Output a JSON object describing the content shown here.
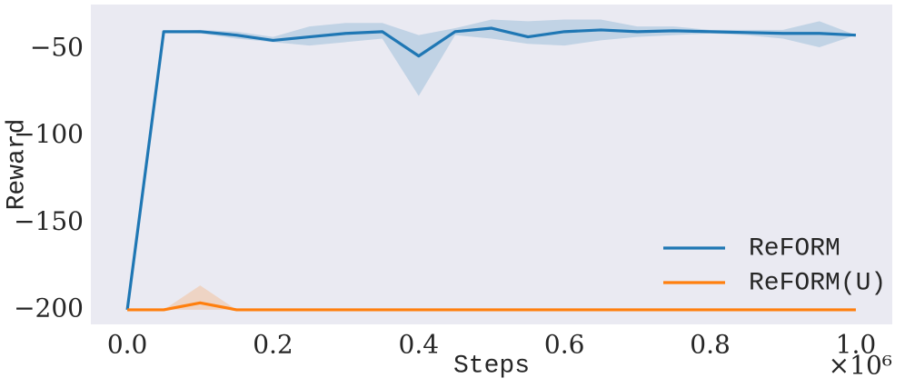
{
  "chart_data": {
    "type": "line",
    "xlabel": "Steps",
    "ylabel": "Reward",
    "x_offset_label": "×10⁶",
    "x": [
      0,
      0.05,
      0.1,
      0.15,
      0.2,
      0.25,
      0.3,
      0.35,
      0.4,
      0.45,
      0.5,
      0.55,
      0.6,
      0.65,
      0.7,
      0.75,
      0.8,
      0.85,
      0.9,
      0.95,
      1.0
    ],
    "series": [
      {
        "name": "ReFORM",
        "color": "#1f77b4",
        "values": [
          -200,
          -40,
          -40,
          -42,
          -45,
          -43,
          -41,
          -40,
          -54,
          -40,
          -38,
          -43,
          -40,
          -39,
          -40,
          -39.5,
          -40,
          -40.5,
          -41,
          -41,
          -42
        ],
        "upper": [
          -200,
          -40,
          -39,
          -40,
          -43,
          -37,
          -35,
          -35,
          -42,
          -38,
          -33,
          -34,
          -33,
          -33,
          -37,
          -37,
          -39,
          -39,
          -39,
          -34,
          -42
        ],
        "lower": [
          -200,
          -40,
          -41,
          -44,
          -46,
          -48,
          -46,
          -44,
          -77,
          -42,
          -44,
          -47,
          -48,
          -45,
          -43,
          -42,
          -41,
          -42,
          -44,
          -49,
          -42
        ]
      },
      {
        "name": "ReFORM(U)",
        "color": "#ff7f0e",
        "values": [
          -200,
          -200,
          -196,
          -200,
          -200,
          -200,
          -200,
          -200,
          -200,
          -200,
          -200,
          -200,
          -200,
          -200,
          -200,
          -200,
          -200,
          -200,
          -200,
          -200,
          -200
        ],
        "upper": [
          -200,
          -200,
          -186,
          -200,
          -200,
          -200,
          -200,
          -200,
          -200,
          -200,
          -200,
          -200,
          -200,
          -200,
          -200,
          -200,
          -200,
          -200,
          -200,
          -200,
          -200
        ],
        "lower": [
          -200,
          -200,
          -200,
          -200,
          -200,
          -200,
          -200,
          -200,
          -200,
          -200,
          -200,
          -200,
          -200,
          -200,
          -200,
          -200,
          -200,
          -200,
          -200,
          -200,
          -200
        ]
      }
    ],
    "xlim": [
      -0.05,
      1.05
    ],
    "ylim": [
      -208.4,
      -24.4
    ],
    "xticks": [
      {
        "value": 0,
        "label": "0.0"
      },
      0.2,
      0.4,
      0.6,
      0.8,
      {
        "value": 1,
        "label": "1.0"
      }
    ],
    "yticks": [
      {
        "value": -200,
        "label": "−200"
      },
      {
        "value": -150,
        "label": "−150"
      },
      {
        "value": -100,
        "label": "−100"
      },
      {
        "value": -50,
        "label": "−50"
      }
    ],
    "grid": false,
    "legend": "lower right",
    "background": "#eaeaf2"
  }
}
